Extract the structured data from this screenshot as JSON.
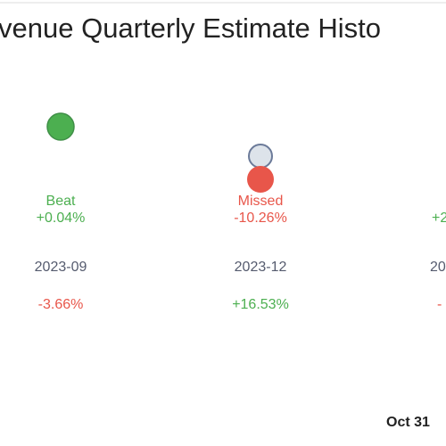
{
  "title": "venue Quarterly Estimate Histo",
  "columns": [
    {
      "result": "Beat",
      "surprise": "+0.04%",
      "period": "2023-09",
      "change": "-3.66%"
    },
    {
      "result": "Missed",
      "surprise": "-10.26%",
      "period": "2023-12",
      "change": "+16.53%"
    },
    {
      "surprise": "+2",
      "period": "20",
      "change": "-"
    }
  ],
  "footer_date": "Oct 31"
}
